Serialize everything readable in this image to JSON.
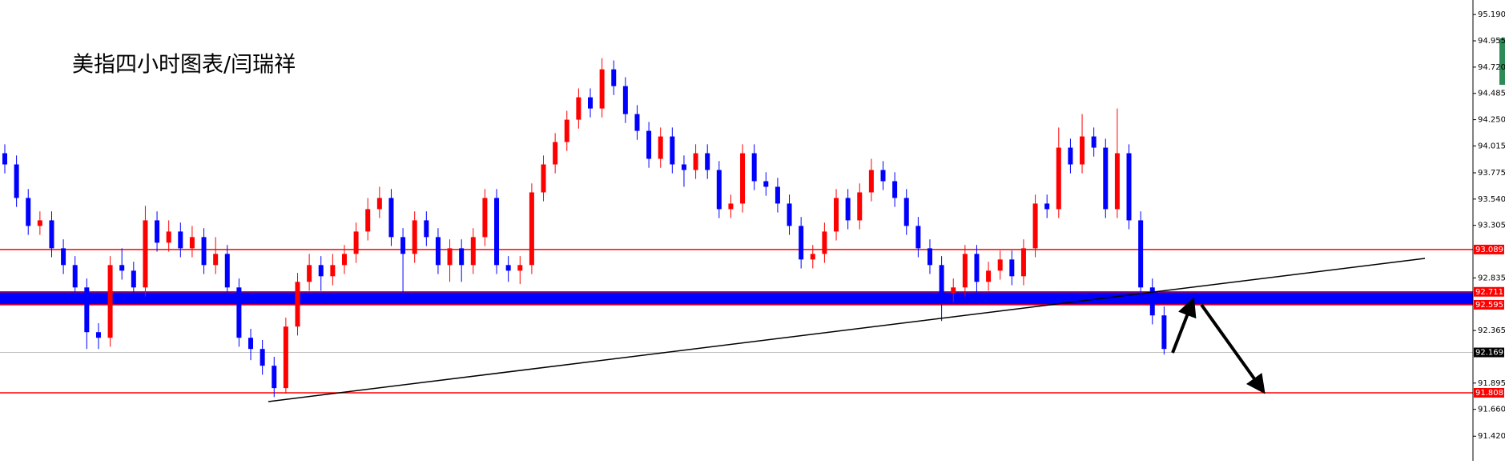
{
  "chart_data": {
    "type": "candlestick",
    "title": "美指四小时图表/闫瑞祥",
    "ylim": [
      91.2,
      95.32
    ],
    "yticks": [
      {
        "value": 95.19,
        "label": "95.190"
      },
      {
        "value": 94.955,
        "label": "94.955"
      },
      {
        "value": 94.72,
        "label": "94.720"
      },
      {
        "value": 94.485,
        "label": "94.485"
      },
      {
        "value": 94.25,
        "label": "94.250"
      },
      {
        "value": 94.015,
        "label": "94.015"
      },
      {
        "value": 93.775,
        "label": "93.775"
      },
      {
        "value": 93.54,
        "label": "93.540"
      },
      {
        "value": 93.305,
        "label": "93.305"
      },
      {
        "value": 92.835,
        "label": "92.835"
      },
      {
        "value": 92.365,
        "label": "92.365"
      },
      {
        "value": 91.895,
        "label": "91.895"
      },
      {
        "value": 91.66,
        "label": "91.660"
      },
      {
        "value": 91.42,
        "label": "91.420"
      }
    ],
    "up_color": "#ff0000",
    "down_color": "#0000ff",
    "candles": {
      "open": [
        93.95,
        93.85,
        93.55,
        93.3,
        93.35,
        93.1,
        92.95,
        92.75,
        92.35,
        92.3,
        92.95,
        92.9,
        92.75,
        93.35,
        93.15,
        93.25,
        93.1,
        93.2,
        92.95,
        93.05,
        92.75,
        92.3,
        92.2,
        92.05,
        91.85,
        92.4,
        92.8,
        92.95,
        92.85,
        92.95,
        93.05,
        93.25,
        93.45,
        93.55,
        93.2,
        93.05,
        93.35,
        93.2,
        92.95,
        93.1,
        92.95,
        93.2,
        93.55,
        92.95,
        92.9,
        92.95,
        93.6,
        93.85,
        94.05,
        94.25,
        94.45,
        94.35,
        94.7,
        94.55,
        94.3,
        94.15,
        93.9,
        94.1,
        93.85,
        93.8,
        93.95,
        93.8,
        93.45,
        93.5,
        93.95,
        93.7,
        93.65,
        93.5,
        93.3,
        93.0,
        93.05,
        93.25,
        93.55,
        93.35,
        93.6,
        93.8,
        93.7,
        93.55,
        93.3,
        93.1,
        92.95,
        92.7,
        92.75,
        93.05,
        92.8,
        92.9,
        93.0,
        92.85,
        93.1,
        93.5,
        93.45,
        94.0,
        93.85,
        94.1,
        94.0,
        93.45,
        93.95,
        93.35,
        92.75,
        92.5
      ],
      "high": [
        94.03,
        93.93,
        93.63,
        93.43,
        93.43,
        93.18,
        93.03,
        92.83,
        92.43,
        93.03,
        93.1,
        92.98,
        93.48,
        93.43,
        93.35,
        93.33,
        93.3,
        93.28,
        93.2,
        93.13,
        92.83,
        92.38,
        92.28,
        92.13,
        92.48,
        92.88,
        93.05,
        93.03,
        93.05,
        93.13,
        93.33,
        93.55,
        93.65,
        93.63,
        93.28,
        93.43,
        93.43,
        93.28,
        93.18,
        93.18,
        93.28,
        93.63,
        93.63,
        93.03,
        93.03,
        93.68,
        93.93,
        94.13,
        94.33,
        94.53,
        94.53,
        94.8,
        94.78,
        94.63,
        94.38,
        94.23,
        94.18,
        94.18,
        93.93,
        94.03,
        94.03,
        93.88,
        93.58,
        94.03,
        94.03,
        93.78,
        93.73,
        93.58,
        93.38,
        93.13,
        93.33,
        93.63,
        93.63,
        93.68,
        93.9,
        93.88,
        93.78,
        93.63,
        93.38,
        93.18,
        93.03,
        92.83,
        93.13,
        93.13,
        92.98,
        93.08,
        93.08,
        93.18,
        93.58,
        93.58,
        94.18,
        94.08,
        94.3,
        94.18,
        94.08,
        94.35,
        94.03,
        93.43,
        92.83,
        92.58
      ],
      "low": [
        93.77,
        93.47,
        93.22,
        93.22,
        93.02,
        92.87,
        92.67,
        92.2,
        92.2,
        92.22,
        92.82,
        92.6,
        92.67,
        93.07,
        93.07,
        93.02,
        93.02,
        92.87,
        92.87,
        92.6,
        92.22,
        92.1,
        91.97,
        91.77,
        91.8,
        92.32,
        92.72,
        92.72,
        92.77,
        92.87,
        92.97,
        93.17,
        93.37,
        93.12,
        92.7,
        92.97,
        93.12,
        92.87,
        92.8,
        92.8,
        92.87,
        93.12,
        92.87,
        92.8,
        92.78,
        92.87,
        93.52,
        93.77,
        93.97,
        94.17,
        94.27,
        94.27,
        94.47,
        94.22,
        94.07,
        93.82,
        93.82,
        93.77,
        93.65,
        93.72,
        93.72,
        93.37,
        93.37,
        93.42,
        93.62,
        93.57,
        93.42,
        93.22,
        92.92,
        92.92,
        92.97,
        93.17,
        93.27,
        93.27,
        93.52,
        93.62,
        93.47,
        93.22,
        93.02,
        92.87,
        92.45,
        92.62,
        92.67,
        92.65,
        92.72,
        92.82,
        92.77,
        92.77,
        93.02,
        93.37,
        93.37,
        93.77,
        93.77,
        93.92,
        93.37,
        93.37,
        93.27,
        92.6,
        92.42,
        92.15
      ],
      "close": [
        93.85,
        93.55,
        93.3,
        93.35,
        93.1,
        92.95,
        92.75,
        92.35,
        92.3,
        92.95,
        92.9,
        92.75,
        93.35,
        93.15,
        93.25,
        93.1,
        93.2,
        92.95,
        93.05,
        92.75,
        92.3,
        92.2,
        92.05,
        91.85,
        92.4,
        92.8,
        92.95,
        92.85,
        92.95,
        93.05,
        93.25,
        93.45,
        93.55,
        93.2,
        93.05,
        93.35,
        93.2,
        92.95,
        93.1,
        92.95,
        93.2,
        93.55,
        92.95,
        92.9,
        92.95,
        93.6,
        93.85,
        94.05,
        94.25,
        94.45,
        94.35,
        94.7,
        94.55,
        94.3,
        94.15,
        93.9,
        94.1,
        93.85,
        93.8,
        93.95,
        93.8,
        93.45,
        93.5,
        93.95,
        93.7,
        93.65,
        93.5,
        93.3,
        93.0,
        93.05,
        93.25,
        93.55,
        93.35,
        93.6,
        93.8,
        93.7,
        93.55,
        93.3,
        93.1,
        92.95,
        92.7,
        92.75,
        93.05,
        92.8,
        92.9,
        93.0,
        92.85,
        93.1,
        93.5,
        93.45,
        94.0,
        93.85,
        94.1,
        94.0,
        93.45,
        93.95,
        93.35,
        92.75,
        92.5,
        92.2
      ]
    },
    "hlines": [
      {
        "value": 93.089,
        "color": "#ff0000"
      },
      {
        "value": 92.711,
        "color": "#ff0000"
      },
      {
        "value": 92.595,
        "color": "#ff0000"
      },
      {
        "value": 91.808,
        "color": "#ff0000"
      },
      {
        "value": 92.169,
        "color": "#000000"
      }
    ],
    "band": {
      "from": 92.595,
      "to": 92.711,
      "color": "#0000ff"
    }
  }
}
